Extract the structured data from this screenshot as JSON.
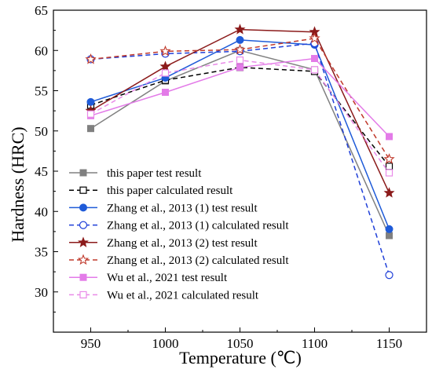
{
  "chart_data": {
    "type": "line",
    "title": "",
    "xlabel": "Temperature (℃)",
    "ylabel": "Hardness (HRC)",
    "x": [
      950,
      1000,
      1050,
      1100,
      1150
    ],
    "xlim": [
      925,
      1175
    ],
    "ylim": [
      25,
      65
    ],
    "xticks": [
      "950",
      "1000",
      "1050",
      "1100",
      "1150"
    ],
    "yticks": [
      "30",
      "35",
      "40",
      "45",
      "50",
      "55",
      "60",
      "65"
    ],
    "grid": false,
    "legend_position": "bottom-left",
    "series": [
      {
        "name": "this paper test result",
        "values": [
          50.3,
          56.2,
          60.0,
          57.6,
          37.0
        ],
        "color": "#808080",
        "dash": "solid",
        "marker": "square-filled"
      },
      {
        "name": "this paper calculated result",
        "values": [
          53.2,
          56.3,
          57.9,
          57.4,
          45.6
        ],
        "color": "#000000",
        "dash": "dashed",
        "marker": "square-open"
      },
      {
        "name": "Zhang et al., 2013 (1) test result",
        "values": [
          53.6,
          56.6,
          61.3,
          60.7,
          37.8
        ],
        "color": "#1f5bd8",
        "dash": "solid",
        "marker": "circle-filled"
      },
      {
        "name": "Zhang et al., 2013 (1) calculated result",
        "values": [
          58.9,
          59.6,
          59.9,
          60.9,
          32.1
        ],
        "color": "#1f3fd8",
        "dash": "dashed",
        "marker": "circle-open"
      },
      {
        "name": "Zhang et al., 2013 (2) test result",
        "values": [
          52.5,
          58.0,
          62.6,
          62.3,
          42.3
        ],
        "color": "#8b1a1a",
        "dash": "solid",
        "marker": "star-filled"
      },
      {
        "name": "Zhang et al., 2013 (2) calculated result",
        "values": [
          58.9,
          59.9,
          60.1,
          61.5,
          46.5
        ],
        "color": "#c0392b",
        "dash": "dashed",
        "marker": "star-open"
      },
      {
        "name": "Wu et al., 2021 test result",
        "values": [
          51.9,
          54.8,
          57.9,
          59.0,
          49.3
        ],
        "color": "#e37be8",
        "dash": "solid",
        "marker": "square-filled"
      },
      {
        "name": "Wu et al., 2021 calculated result",
        "values": [
          52.1,
          57.2,
          58.8,
          57.6,
          44.8
        ],
        "color": "#e98ae8",
        "dash": "dashed",
        "marker": "square-open"
      }
    ]
  }
}
